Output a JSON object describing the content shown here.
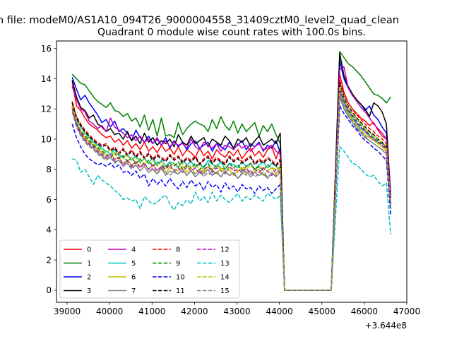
{
  "figure": {
    "suptitle": "n file: modeM0/AS1A10_094T26_9000004558_31409cztM0_level2_quad_clean"
  },
  "chart_data": {
    "type": "line",
    "title": "Quadrant 0 module wise count rates with 100.0s bins.",
    "xlabel": "",
    "ylabel": "",
    "x_offset_label": "+3.644e8",
    "xlim": [
      38750,
      47000
    ],
    "ylim": [
      -0.8,
      16.5
    ],
    "x_ticks": [
      39000,
      40000,
      41000,
      42000,
      43000,
      44000,
      45000,
      46000,
      47000
    ],
    "x_tick_labels": [
      "39000",
      "40000",
      "41000",
      "42000",
      "43000",
      "44000",
      "45000",
      "46000",
      "47000"
    ],
    "y_ticks": [
      0,
      2,
      4,
      6,
      8,
      10,
      12,
      14,
      16
    ],
    "y_tick_labels": [
      "0",
      "2",
      "4",
      "6",
      "8",
      "10",
      "12",
      "14",
      "16"
    ],
    "grid": false,
    "legend": {
      "placement": "lower-left",
      "columns": 4
    },
    "segment1": {
      "x_start": 39120,
      "x_step": 100,
      "count": 50
    },
    "gap": {
      "x": [
        44120,
        44220,
        44320,
        45220
      ],
      "y": [
        0,
        0,
        0,
        0
      ]
    },
    "segment2": {
      "x_start": 45420,
      "x_step": 100,
      "count": 13
    },
    "series": [
      {
        "name": "0",
        "color": "#ff0000",
        "dashed": false,
        "seg1": [
          13.8,
          12.2,
          11.9,
          11.4,
          11.0,
          10.8,
          10.6,
          10.3,
          10.1,
          10.2,
          9.8,
          10.0,
          9.6,
          9.9,
          9.4,
          9.7,
          9.3,
          9.8,
          9.2,
          9.5,
          9.1,
          9.6,
          9.2,
          9.4,
          9.0,
          9.5,
          8.9,
          9.3,
          9.1,
          8.8,
          9.4,
          8.9,
          9.2,
          8.7,
          9.3,
          9.0,
          8.8,
          9.2,
          8.9,
          9.3,
          8.7,
          9.1,
          9.4,
          8.9,
          9.2,
          8.8,
          9.3,
          9.5,
          8.7,
          9.4
        ],
        "seg2": [
          14.3,
          13.1,
          12.4,
          12.0,
          11.7,
          11.4,
          11.2,
          10.9,
          11.1,
          10.6,
          10.2,
          10.0,
          6.3
        ]
      },
      {
        "name": "1",
        "color": "#008000",
        "dashed": false,
        "seg1": [
          14.3,
          14.0,
          13.7,
          13.6,
          13.2,
          12.8,
          12.5,
          12.3,
          12.1,
          12.4,
          11.9,
          11.8,
          11.5,
          11.7,
          11.2,
          11.4,
          10.8,
          11.6,
          10.6,
          11.3,
          10.2,
          11.4,
          10.2,
          10.3,
          10.1,
          11.1,
          10.3,
          10.7,
          11.0,
          11.2,
          11.0,
          10.9,
          10.5,
          11.3,
          10.7,
          11.5,
          10.9,
          10.6,
          11.2,
          10.4,
          11.0,
          10.5,
          10.8,
          11.1,
          10.2,
          10.9,
          10.5,
          11.0,
          10.3,
          9.7
        ],
        "seg2": [
          15.8,
          15.4,
          15.0,
          14.8,
          14.5,
          14.2,
          13.8,
          13.4,
          13.0,
          12.9,
          12.7,
          12.4,
          12.8
        ]
      },
      {
        "name": "2",
        "color": "#0000ff",
        "dashed": false,
        "seg1": [
          14.1,
          13.3,
          12.6,
          12.9,
          12.4,
          12.0,
          11.6,
          11.1,
          11.3,
          10.8,
          11.2,
          10.5,
          10.7,
          10.4,
          9.9,
          10.6,
          10.1,
          9.8,
          10.2,
          9.7,
          10.0,
          9.6,
          10.1,
          9.4,
          9.9,
          9.5,
          9.8,
          9.3,
          9.7,
          9.9,
          9.4,
          9.6,
          9.8,
          9.2,
          9.7,
          9.5,
          9.3,
          9.8,
          9.4,
          9.6,
          9.9,
          9.3,
          9.7,
          9.5,
          9.8,
          9.2,
          9.6,
          9.4,
          9.9,
          9.1
        ],
        "seg2": [
          15.2,
          14.0,
          13.4,
          12.9,
          12.6,
          12.3,
          11.9,
          12.2,
          11.6,
          11.3,
          10.8,
          10.4,
          6.4
        ]
      },
      {
        "name": "3",
        "color": "#000000",
        "dashed": false,
        "seg1": [
          13.9,
          12.8,
          12.1,
          11.9,
          11.4,
          11.6,
          11.0,
          10.8,
          10.5,
          10.7,
          10.3,
          10.4,
          10.0,
          10.5,
          9.9,
          10.2,
          9.7,
          10.4,
          9.8,
          10.1,
          9.6,
          9.9,
          9.7,
          10.0,
          9.5,
          10.3,
          9.8,
          9.6,
          10.2,
          9.7,
          9.9,
          10.1,
          9.5,
          10.0,
          9.8,
          9.6,
          10.2,
          9.9,
          9.4,
          10.0,
          9.8,
          10.1,
          9.5,
          9.9,
          10.2,
          9.6,
          9.8,
          10.0,
          9.7,
          10.4
        ],
        "seg2": [
          15.7,
          14.2,
          13.5,
          13.0,
          12.6,
          12.3,
          12.0,
          11.5,
          12.4,
          12.2,
          11.8,
          11.0,
          6.2
        ]
      },
      {
        "name": "4",
        "color": "#bf00bf",
        "dashed": false,
        "seg1": [
          13.5,
          12.6,
          12.0,
          11.8,
          11.2,
          11.0,
          10.7,
          10.9,
          10.5,
          11.4,
          10.8,
          10.6,
          10.4,
          10.1,
          10.3,
          9.9,
          10.2,
          9.8,
          10.0,
          9.7,
          10.1,
          9.6,
          9.9,
          9.5,
          9.8,
          9.6,
          9.7,
          9.4,
          10.0,
          9.5,
          9.3,
          9.8,
          9.6,
          9.4,
          9.7,
          9.2,
          9.6,
          9.5,
          9.3,
          9.7,
          9.4,
          9.6,
          9.2,
          9.5,
          9.7,
          9.3,
          9.4,
          9.6,
          9.2,
          9.0
        ],
        "seg2": [
          14.6,
          14.8,
          13.4,
          12.9,
          12.5,
          12.1,
          11.8,
          11.4,
          11.0,
          10.7,
          10.4,
          10.0,
          6.1
        ]
      },
      {
        "name": "5",
        "color": "#00bfbf",
        "dashed": false,
        "seg1": [
          12.4,
          11.3,
          10.8,
          10.4,
          10.1,
          9.8,
          9.6,
          9.4,
          9.2,
          9.0,
          9.3,
          8.9,
          8.8,
          9.0,
          8.6,
          8.9,
          8.5,
          8.7,
          8.4,
          8.8,
          8.3,
          8.6,
          8.2,
          8.5,
          8.4,
          8.1,
          8.6,
          8.3,
          8.5,
          8.2,
          8.4,
          8.1,
          8.6,
          8.3,
          8.2,
          8.5,
          8.0,
          8.4,
          8.3,
          8.1,
          8.5,
          8.2,
          8.4,
          8.0,
          8.3,
          8.5,
          8.1,
          8.4,
          8.2,
          7.9
        ],
        "seg2": [
          13.2,
          12.4,
          11.8,
          11.4,
          11.0,
          10.7,
          10.5,
          10.2,
          10.0,
          9.8,
          9.7,
          9.5,
          5.6
        ]
      },
      {
        "name": "6",
        "color": "#bfbf00",
        "dashed": false,
        "seg1": [
          12.3,
          11.0,
          10.5,
          10.1,
          9.8,
          9.6,
          9.3,
          9.1,
          8.9,
          9.0,
          8.7,
          8.8,
          8.4,
          8.6,
          8.3,
          8.5,
          8.2,
          8.4,
          8.0,
          8.3,
          7.9,
          8.2,
          7.8,
          8.1,
          8.0,
          7.9,
          8.2,
          7.8,
          8.1,
          7.7,
          8.0,
          7.8,
          8.2,
          7.9,
          7.7,
          8.1,
          7.8,
          8.0,
          7.6,
          7.9,
          8.1,
          7.7,
          7.9,
          7.8,
          8.0,
          7.6,
          7.9,
          8.1,
          7.7,
          8.2
        ],
        "seg2": [
          13.0,
          12.2,
          11.7,
          11.3,
          10.9,
          10.6,
          10.3,
          10.1,
          9.9,
          9.7,
          9.5,
          9.2,
          5.5
        ]
      },
      {
        "name": "7",
        "color": "#808080",
        "dashed": false,
        "seg1": [
          12.0,
          10.9,
          10.3,
          9.9,
          9.6,
          9.4,
          9.1,
          8.9,
          8.7,
          8.8,
          8.5,
          8.6,
          8.2,
          8.4,
          8.1,
          8.3,
          7.9,
          8.2,
          7.8,
          8.0,
          7.7,
          8.1,
          7.6,
          7.9,
          7.8,
          7.7,
          8.0,
          7.6,
          7.9,
          7.5,
          7.8,
          7.7,
          8.0,
          7.6,
          7.8,
          7.5,
          7.9,
          7.6,
          7.8,
          7.4,
          7.7,
          7.9,
          7.5,
          7.8,
          7.6,
          7.7,
          7.4,
          7.8,
          7.5,
          7.9
        ],
        "seg2": [
          12.8,
          12.0,
          11.5,
          11.1,
          10.7,
          10.4,
          10.1,
          9.9,
          9.7,
          9.5,
          9.3,
          9.0,
          5.4
        ]
      },
      {
        "name": "8",
        "color": "#ff0000",
        "dashed": true,
        "seg1": [
          12.5,
          11.5,
          11.0,
          10.6,
          10.3,
          10.0,
          9.8,
          9.6,
          9.7,
          9.3,
          9.5,
          9.1,
          9.4,
          9.0,
          9.3,
          8.9,
          9.2,
          8.8,
          9.1,
          8.7,
          9.0,
          8.8,
          8.6,
          9.0,
          8.7,
          8.9,
          8.5,
          8.8,
          8.6,
          8.9,
          8.4,
          8.7,
          8.9,
          8.5,
          8.8,
          8.6,
          8.4,
          8.9,
          8.6,
          8.8,
          8.5,
          8.7,
          8.9,
          8.4,
          8.7,
          8.5,
          8.8,
          8.6,
          8.3,
          8.7
        ],
        "seg2": [
          13.9,
          13.0,
          12.4,
          12.0,
          11.6,
          11.3,
          11.0,
          10.7,
          10.5,
          10.2,
          10.0,
          9.7,
          5.8
        ]
      },
      {
        "name": "9",
        "color": "#008000",
        "dashed": true,
        "seg1": [
          12.2,
          11.1,
          10.5,
          10.2,
          9.9,
          9.6,
          9.4,
          9.2,
          9.0,
          8.8,
          9.1,
          8.7,
          8.9,
          8.5,
          8.8,
          8.4,
          8.7,
          8.3,
          8.6,
          8.2,
          8.5,
          8.3,
          8.1,
          8.4,
          8.2,
          8.5,
          8.0,
          8.3,
          8.1,
          8.4,
          8.0,
          8.2,
          8.4,
          7.9,
          8.3,
          8.1,
          8.0,
          8.4,
          8.1,
          8.3,
          7.9,
          8.2,
          8.4,
          8.0,
          8.2,
          7.9,
          8.3,
          8.1,
          8.0,
          8.2
        ],
        "seg2": [
          13.4,
          12.6,
          12.0,
          11.6,
          11.2,
          10.9,
          10.6,
          10.3,
          10.1,
          9.9,
          9.7,
          9.4,
          5.6
        ]
      },
      {
        "name": "10",
        "color": "#0000ff",
        "dashed": true,
        "seg1": [
          11.0,
          10.1,
          9.5,
          9.0,
          8.7,
          8.5,
          8.3,
          8.4,
          8.2,
          8.4,
          8.1,
          8.3,
          7.8,
          7.9,
          7.6,
          7.9,
          7.4,
          7.7,
          6.9,
          7.4,
          7.0,
          7.3,
          6.9,
          7.4,
          7.0,
          6.7,
          7.2,
          6.8,
          7.3,
          6.9,
          7.1,
          6.6,
          7.2,
          6.8,
          7.0,
          6.5,
          7.1,
          6.7,
          6.9,
          6.5,
          7.0,
          6.7,
          6.8,
          6.4,
          6.9,
          6.6,
          6.8,
          6.4,
          6.7,
          7.0
        ],
        "seg2": [
          12.2,
          11.7,
          11.3,
          10.9,
          10.6,
          10.2,
          9.9,
          9.7,
          9.4,
          9.2,
          8.9,
          8.6,
          5.0
        ]
      },
      {
        "name": "11",
        "color": "#000000",
        "dashed": true,
        "seg1": [
          12.4,
          11.4,
          10.9,
          10.5,
          10.2,
          9.9,
          9.7,
          9.5,
          9.6,
          9.2,
          9.4,
          9.0,
          9.3,
          8.9,
          9.2,
          8.8,
          9.1,
          8.7,
          9.0,
          8.6,
          8.9,
          8.7,
          8.5,
          8.9,
          8.6,
          8.8,
          8.4,
          8.7,
          8.5,
          8.8,
          8.3,
          8.6,
          8.8,
          8.4,
          8.7,
          8.5,
          8.3,
          8.8,
          8.5,
          8.7,
          8.4,
          8.6,
          8.8,
          8.3,
          8.6,
          8.4,
          8.7,
          8.5,
          8.2,
          8.6
        ],
        "seg2": [
          13.7,
          12.8,
          12.2,
          11.8,
          11.4,
          11.1,
          10.8,
          10.5,
          10.3,
          10.0,
          9.8,
          9.5,
          5.7
        ]
      },
      {
        "name": "12",
        "color": "#bf00bf",
        "dashed": true,
        "seg1": [
          12.1,
          11.0,
          10.4,
          10.0,
          9.7,
          9.5,
          9.2,
          9.0,
          8.8,
          9.0,
          8.6,
          8.8,
          8.3,
          8.6,
          8.2,
          8.5,
          8.1,
          8.4,
          8.0,
          8.3,
          7.9,
          8.2,
          8.0,
          8.3,
          7.9,
          8.1,
          7.8,
          8.2,
          7.9,
          8.1,
          7.7,
          8.0,
          8.2,
          7.8,
          8.1,
          7.9,
          7.7,
          8.2,
          7.9,
          8.0,
          7.8,
          8.1,
          7.7,
          8.0,
          7.8,
          8.1,
          7.9,
          7.6,
          8.0,
          7.8
        ],
        "seg2": [
          13.3,
          12.5,
          11.9,
          11.5,
          11.1,
          10.8,
          10.5,
          10.2,
          10.0,
          9.8,
          9.6,
          9.3,
          5.6
        ]
      },
      {
        "name": "13",
        "color": "#00bfbf",
        "dashed": true,
        "seg1": [
          8.7,
          8.6,
          7.8,
          8.0,
          7.5,
          7.0,
          7.6,
          7.3,
          7.1,
          6.9,
          6.6,
          6.4,
          6.0,
          6.1,
          5.9,
          6.0,
          5.4,
          6.2,
          5.9,
          5.7,
          5.8,
          6.1,
          6.3,
          5.7,
          5.3,
          5.8,
          5.6,
          6.0,
          5.7,
          6.5,
          5.9,
          6.2,
          5.8,
          6.5,
          5.9,
          6.3,
          6.0,
          5.8,
          6.1,
          6.4,
          5.9,
          6.2,
          6.0,
          6.3,
          6.1,
          5.9,
          6.4,
          6.2,
          6.0,
          6.3
        ],
        "seg2": [
          9.5,
          9.2,
          8.8,
          8.4,
          8.3,
          8.0,
          7.7,
          7.5,
          7.6,
          7.2,
          6.9,
          7.1,
          3.7
        ]
      },
      {
        "name": "14",
        "color": "#bfbf00",
        "dashed": true,
        "seg1": [
          12.2,
          11.2,
          10.6,
          10.3,
          10.0,
          9.7,
          9.5,
          9.3,
          9.1,
          9.3,
          8.9,
          9.1,
          8.7,
          8.9,
          8.6,
          8.8,
          8.4,
          8.7,
          8.3,
          8.6,
          8.2,
          8.5,
          8.3,
          8.1,
          8.4,
          8.2,
          8.4,
          8.0,
          8.3,
          8.1,
          8.3,
          7.9,
          8.2,
          8.0,
          8.3,
          7.9,
          8.2,
          8.0,
          8.1,
          7.8,
          8.2,
          8.0,
          8.3,
          7.9,
          8.1,
          8.2,
          7.9,
          8.1,
          8.0,
          8.2
        ],
        "seg2": [
          13.5,
          12.7,
          12.1,
          11.7,
          11.3,
          11.0,
          10.7,
          10.4,
          10.2,
          10.0,
          9.8,
          9.5,
          5.7
        ]
      },
      {
        "name": "15",
        "color": "#808080",
        "dashed": true,
        "seg1": [
          11.8,
          10.8,
          10.2,
          9.8,
          9.5,
          9.3,
          9.0,
          8.8,
          8.6,
          8.8,
          8.4,
          8.6,
          8.2,
          8.4,
          8.0,
          8.3,
          7.9,
          8.2,
          7.8,
          8.1,
          7.7,
          8.0,
          7.8,
          7.6,
          7.9,
          7.7,
          8.0,
          7.6,
          7.9,
          7.7,
          7.9,
          7.5,
          7.8,
          7.6,
          7.9,
          7.5,
          7.8,
          7.6,
          7.7,
          7.4,
          7.8,
          7.6,
          7.9,
          7.5,
          7.7,
          7.8,
          7.5,
          7.7,
          7.6,
          7.8
        ],
        "seg2": [
          13.0,
          12.2,
          11.6,
          11.2,
          10.8,
          10.5,
          10.2,
          9.9,
          9.7,
          9.5,
          9.3,
          9.0,
          5.4
        ]
      }
    ]
  }
}
